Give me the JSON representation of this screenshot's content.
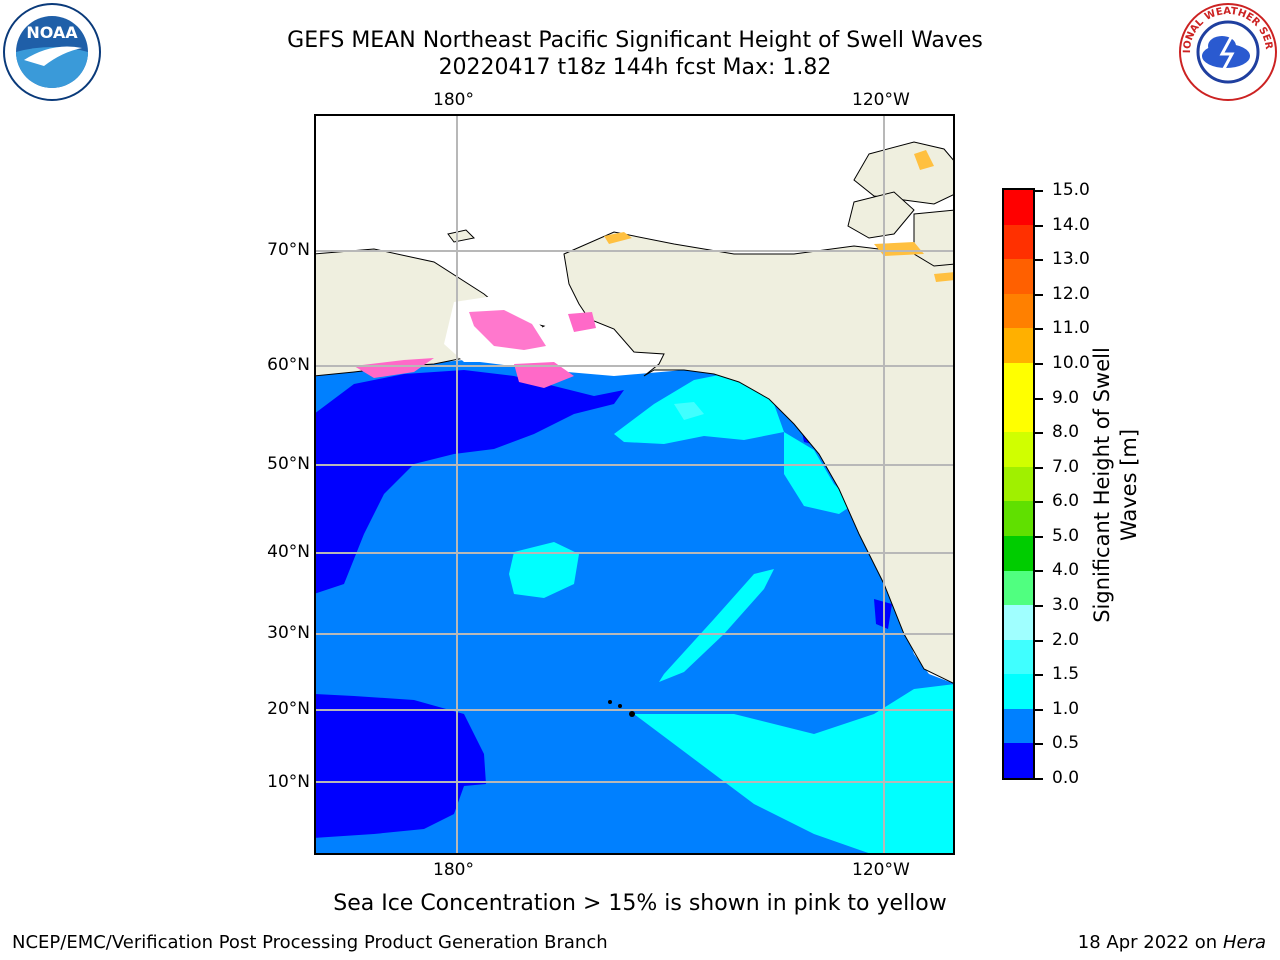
{
  "title_line1": "GEFS MEAN Northeast Pacific Significant Height of Swell Waves",
  "title_line2": "20220417 t18z 144h fcst   Max: 1.82",
  "x_ticks": [
    "180°",
    "120°W"
  ],
  "y_ticks": [
    "70°N",
    "60°N",
    "50°N",
    "40°N",
    "30°N",
    "20°N",
    "10°N"
  ],
  "colorbar": {
    "label_line1": "Significant Height of Swell",
    "label_line2": "Waves [m]",
    "ticks": [
      "15.0",
      "14.0",
      "13.0",
      "12.0",
      "11.0",
      "10.0",
      "9.0",
      "8.0",
      "7.0",
      "6.0",
      "5.0",
      "4.0",
      "3.0",
      "2.0",
      "1.5",
      "1.0",
      "0.5",
      "0.0"
    ],
    "colors_bottom_to_top": [
      "#0000ff",
      "#0080ff",
      "#00ffff",
      "#40ffff",
      "#a0ffff",
      "#50ff80",
      "#00cc00",
      "#60e000",
      "#a0f000",
      "#d0ff00",
      "#ffff00",
      "#ffff00",
      "#ffb000",
      "#ff8000",
      "#ff6000",
      "#ff3000",
      "#ff0000"
    ]
  },
  "map_colors": {
    "land": "#efefdf",
    "ocean_deep": "#0000ff",
    "ocean_mid": "#0080ff",
    "ocean_light": "#00ffff",
    "ice_pink": "#ff69c8",
    "ice_yellow": "#ffc040"
  },
  "footnote": "Sea Ice Concentration > 15% is shown in pink to yellow",
  "footer_left": "NCEP/EMC/Verification Post Processing Product Generation Branch",
  "footer_right_prefix": "18 Apr 2022 on ",
  "footer_right_italic": "Hera",
  "logos": {
    "left": "NOAA",
    "right": "NATIONAL WEATHER SERVICE"
  }
}
